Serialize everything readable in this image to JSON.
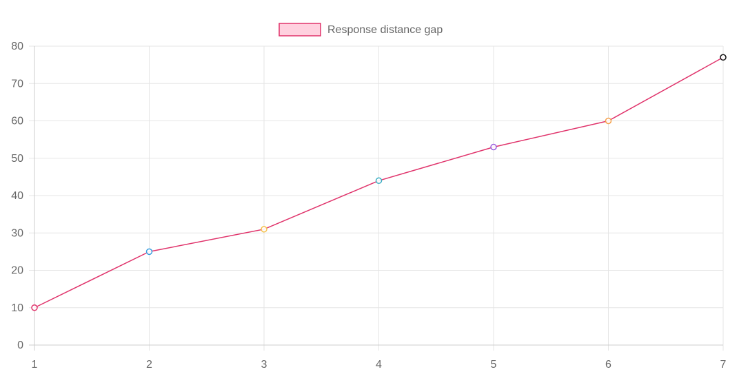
{
  "chart_data": {
    "type": "line",
    "x": [
      1,
      2,
      3,
      4,
      5,
      6,
      7
    ],
    "series": [
      {
        "name": "Response distance gap",
        "values": [
          10,
          25,
          31,
          44,
          53,
          60,
          77
        ],
        "line_color": "#e0336b",
        "legend_fill": "#ffd1df",
        "point_colors": [
          "#e0336b",
          "#3a9fe0",
          "#f5c04a",
          "#3aaec2",
          "#9a5ee0",
          "#f5a04a",
          "#111111"
        ]
      }
    ],
    "title": "",
    "xlabel": "",
    "ylabel": "",
    "xlim": [
      1,
      7
    ],
    "ylim": [
      0,
      80
    ],
    "y_ticks": [
      0,
      10,
      20,
      30,
      40,
      50,
      60,
      70,
      80
    ],
    "x_ticks": [
      1,
      2,
      3,
      4,
      5,
      6,
      7
    ],
    "grid": true,
    "legend_position": "top-center",
    "grid_color": "#e5e5e5",
    "axis_color": "#cccccc"
  }
}
